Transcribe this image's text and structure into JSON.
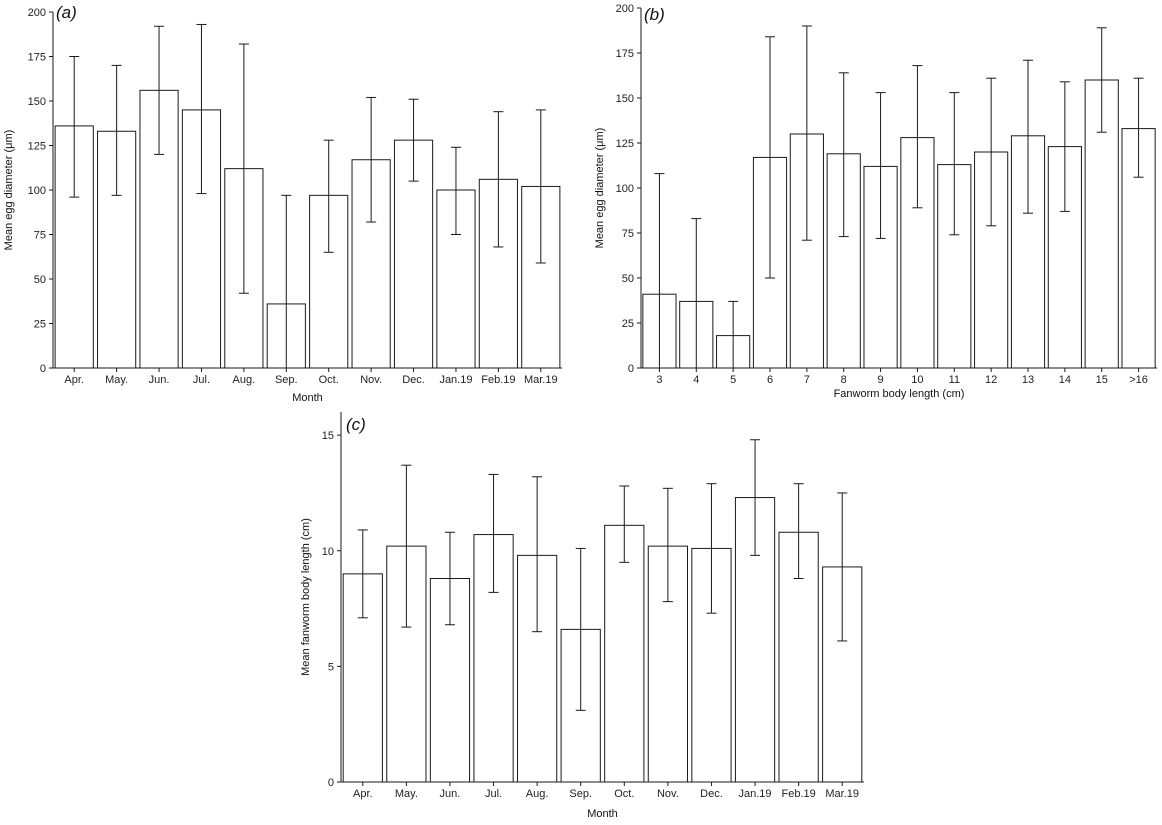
{
  "chart_data": [
    {
      "type": "bar",
      "panel_label": "(a)",
      "xlabel": "Month",
      "ylabel": "Mean egg diameter (μm)",
      "ylim": [
        0,
        200
      ],
      "yticks": [
        0,
        25,
        50,
        75,
        100,
        125,
        150,
        175,
        200
      ],
      "categories": [
        "Apr.",
        "May.",
        "Jun.",
        "Jul.",
        "Aug.",
        "Sep.",
        "Oct.",
        "Nov.",
        "Dec.",
        "Jan.19",
        "Feb.19",
        "Mar.19"
      ],
      "values": [
        136,
        133,
        156,
        145,
        112,
        36,
        97,
        117,
        128,
        100,
        106,
        102
      ],
      "err_low": [
        96,
        97,
        120,
        98,
        42,
        0,
        65,
        82,
        105,
        75,
        68,
        59
      ],
      "err_high": [
        175,
        170,
        192,
        193,
        182,
        97,
        128,
        152,
        151,
        124,
        144,
        145
      ]
    },
    {
      "type": "bar",
      "panel_label": "(b)",
      "xlabel": "Fanworm body length (cm)",
      "ylabel": "Mean egg diameter (μm)",
      "ylim": [
        0,
        200
      ],
      "yticks": [
        0,
        25,
        50,
        75,
        100,
        125,
        150,
        175,
        200
      ],
      "categories": [
        "3",
        "4",
        "5",
        "6",
        "7",
        "8",
        "9",
        "10",
        "11",
        "12",
        "13",
        "14",
        "15",
        ">16"
      ],
      "values": [
        41,
        37,
        18,
        117,
        130,
        119,
        112,
        128,
        113,
        120,
        129,
        123,
        160,
        133
      ],
      "err_low": [
        0,
        0,
        0,
        50,
        71,
        73,
        72,
        89,
        74,
        79,
        86,
        87,
        131,
        106
      ],
      "err_high": [
        108,
        83,
        37,
        184,
        190,
        164,
        153,
        168,
        153,
        161,
        171,
        159,
        189,
        161
      ]
    },
    {
      "type": "bar",
      "panel_label": "(c)",
      "xlabel": "Month",
      "ylabel": "Mean fanworm body length (cm)",
      "ylim": [
        0,
        16
      ],
      "yticks": [
        0,
        5,
        10,
        15
      ],
      "categories": [
        "Apr.",
        "May.",
        "Jun.",
        "Jul.",
        "Aug.",
        "Sep.",
        "Oct.",
        "Nov.",
        "Dec.",
        "Jan.19",
        "Feb.19",
        "Mar.19"
      ],
      "values": [
        9.0,
        10.2,
        8.8,
        10.7,
        9.8,
        6.6,
        11.1,
        10.2,
        10.1,
        12.3,
        10.8,
        9.3
      ],
      "err_low": [
        7.1,
        6.7,
        6.8,
        8.2,
        6.5,
        3.1,
        9.5,
        7.8,
        7.3,
        9.8,
        8.8,
        6.1
      ],
      "err_high": [
        10.9,
        13.7,
        10.8,
        13.3,
        13.2,
        10.1,
        12.8,
        12.7,
        12.9,
        14.8,
        12.9,
        12.5
      ]
    }
  ]
}
